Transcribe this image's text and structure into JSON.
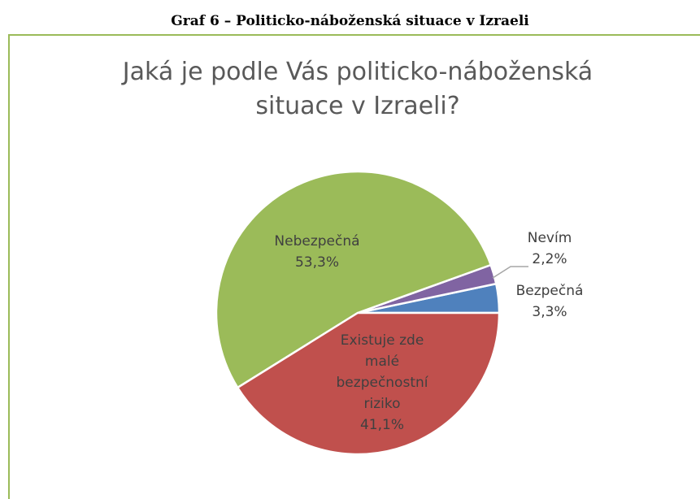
{
  "caption": "Graf 6 – Politicko-náboženská situace v Izraeli",
  "chart_data": {
    "type": "pie",
    "title": "Jaká je podle Vás politicko-náboženská situace v Izraeli?",
    "categories": [
      "Bezpečná",
      "Nevím",
      "Nebezpečná",
      "Existuje zde malé bezpečnostní riziko"
    ],
    "values": [
      3.3,
      2.2,
      53.3,
      41.1
    ],
    "value_labels": [
      "3,3%",
      "2,2%",
      "53,3%",
      "41,1%"
    ],
    "colors": [
      "#4f81bd",
      "#8064a2",
      "#9bbb59",
      "#c0504d"
    ]
  }
}
